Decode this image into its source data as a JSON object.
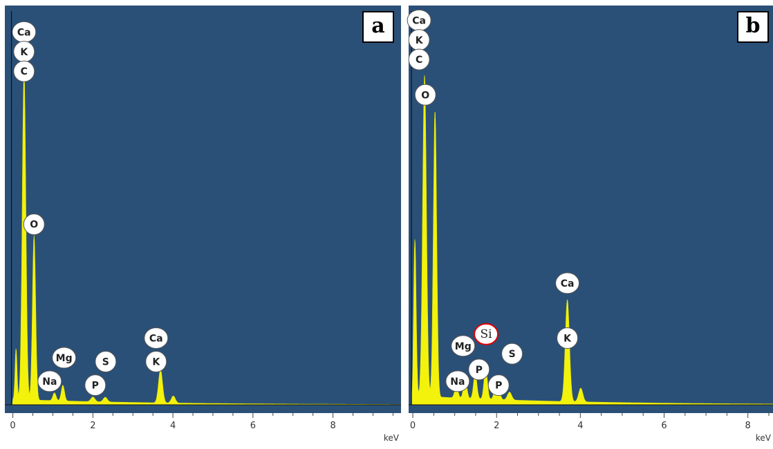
{
  "chart_data": [
    {
      "type": "area",
      "panel_label": "a",
      "xlabel": "keV",
      "xlim": [
        -0.2,
        9.7
      ],
      "ylim": [
        0,
        1
      ],
      "x_ticks": [
        0,
        2,
        4,
        6,
        8
      ],
      "x_tick_labels": [
        "0",
        "2",
        "4",
        "6",
        "8"
      ],
      "colors": {
        "background": "#2a5078",
        "fill": "#f2f20d",
        "axis_strip": "#ffffff"
      },
      "peaks": [
        {
          "x": 0.08,
          "y": 0.13,
          "w": 0.025
        },
        {
          "x": 0.28,
          "y": 0.84,
          "w": 0.045
        },
        {
          "x": 0.53,
          "y": 0.42,
          "w": 0.04
        },
        {
          "x": 1.04,
          "y": 0.02,
          "w": 0.04
        },
        {
          "x": 1.25,
          "y": 0.04,
          "w": 0.04
        },
        {
          "x": 2.0,
          "y": 0.012,
          "w": 0.05
        },
        {
          "x": 2.31,
          "y": 0.012,
          "w": 0.05
        },
        {
          "x": 3.69,
          "y": 0.085,
          "w": 0.05
        },
        {
          "x": 4.01,
          "y": 0.018,
          "w": 0.05
        }
      ],
      "baseline": 0.012,
      "peak_labels": [
        {
          "text": "Ca",
          "x": 0.28,
          "y": 0.95
        },
        {
          "text": "K",
          "x": 0.28,
          "y": 0.9
        },
        {
          "text": "C",
          "x": 0.28,
          "y": 0.85
        },
        {
          "text": "O",
          "x": 0.53,
          "y": 0.46
        },
        {
          "text": "Mg",
          "x": 1.28,
          "y": 0.12
        },
        {
          "text": "Na",
          "x": 0.92,
          "y": 0.06
        },
        {
          "text": "S",
          "x": 2.32,
          "y": 0.11
        },
        {
          "text": "P",
          "x": 2.06,
          "y": 0.05
        },
        {
          "text": "Ca",
          "x": 3.58,
          "y": 0.17
        },
        {
          "text": "K",
          "x": 3.58,
          "y": 0.11
        }
      ]
    },
    {
      "type": "area",
      "panel_label": "b",
      "xlabel": "keV",
      "xlim": [
        -0.1,
        8.6
      ],
      "ylim": [
        0,
        1
      ],
      "x_ticks": [
        0,
        2,
        4,
        6,
        8
      ],
      "x_tick_labels": [
        "0",
        "2",
        "4",
        "6",
        "8"
      ],
      "colors": {
        "background": "#2a5078",
        "fill": "#f2f20d",
        "axis_strip": "#ffffff",
        "highlight_ring": "#e00000"
      },
      "peaks": [
        {
          "x": 0.05,
          "y": 0.4,
          "w": 0.03
        },
        {
          "x": 0.28,
          "y": 0.82,
          "w": 0.045
        },
        {
          "x": 0.53,
          "y": 0.73,
          "w": 0.04
        },
        {
          "x": 1.04,
          "y": 0.03,
          "w": 0.04
        },
        {
          "x": 1.25,
          "y": 0.05,
          "w": 0.04
        },
        {
          "x": 1.49,
          "y": 0.065,
          "w": 0.04
        },
        {
          "x": 1.74,
          "y": 0.08,
          "w": 0.04
        },
        {
          "x": 2.01,
          "y": 0.06,
          "w": 0.05
        },
        {
          "x": 2.31,
          "y": 0.02,
          "w": 0.05
        },
        {
          "x": 3.69,
          "y": 0.26,
          "w": 0.05
        },
        {
          "x": 4.01,
          "y": 0.035,
          "w": 0.05
        }
      ],
      "baseline": 0.02,
      "peak_labels": [
        {
          "text": "Ca",
          "x": 0.15,
          "y": 0.98
        },
        {
          "text": "K",
          "x": 0.15,
          "y": 0.93
        },
        {
          "text": "C",
          "x": 0.15,
          "y": 0.88
        },
        {
          "text": "O",
          "x": 0.3,
          "y": 0.79
        },
        {
          "text": "Mg",
          "x": 1.2,
          "y": 0.15
        },
        {
          "text": "Si",
          "x": 1.75,
          "y": 0.18,
          "highlight": true
        },
        {
          "text": "P",
          "x": 1.58,
          "y": 0.09
        },
        {
          "text": "S",
          "x": 2.37,
          "y": 0.13
        },
        {
          "text": "P",
          "x": 2.05,
          "y": 0.05
        },
        {
          "text": "Na",
          "x": 1.07,
          "y": 0.06
        },
        {
          "text": "Ca",
          "x": 3.69,
          "y": 0.31
        },
        {
          "text": "K",
          "x": 3.69,
          "y": 0.17
        }
      ]
    }
  ]
}
